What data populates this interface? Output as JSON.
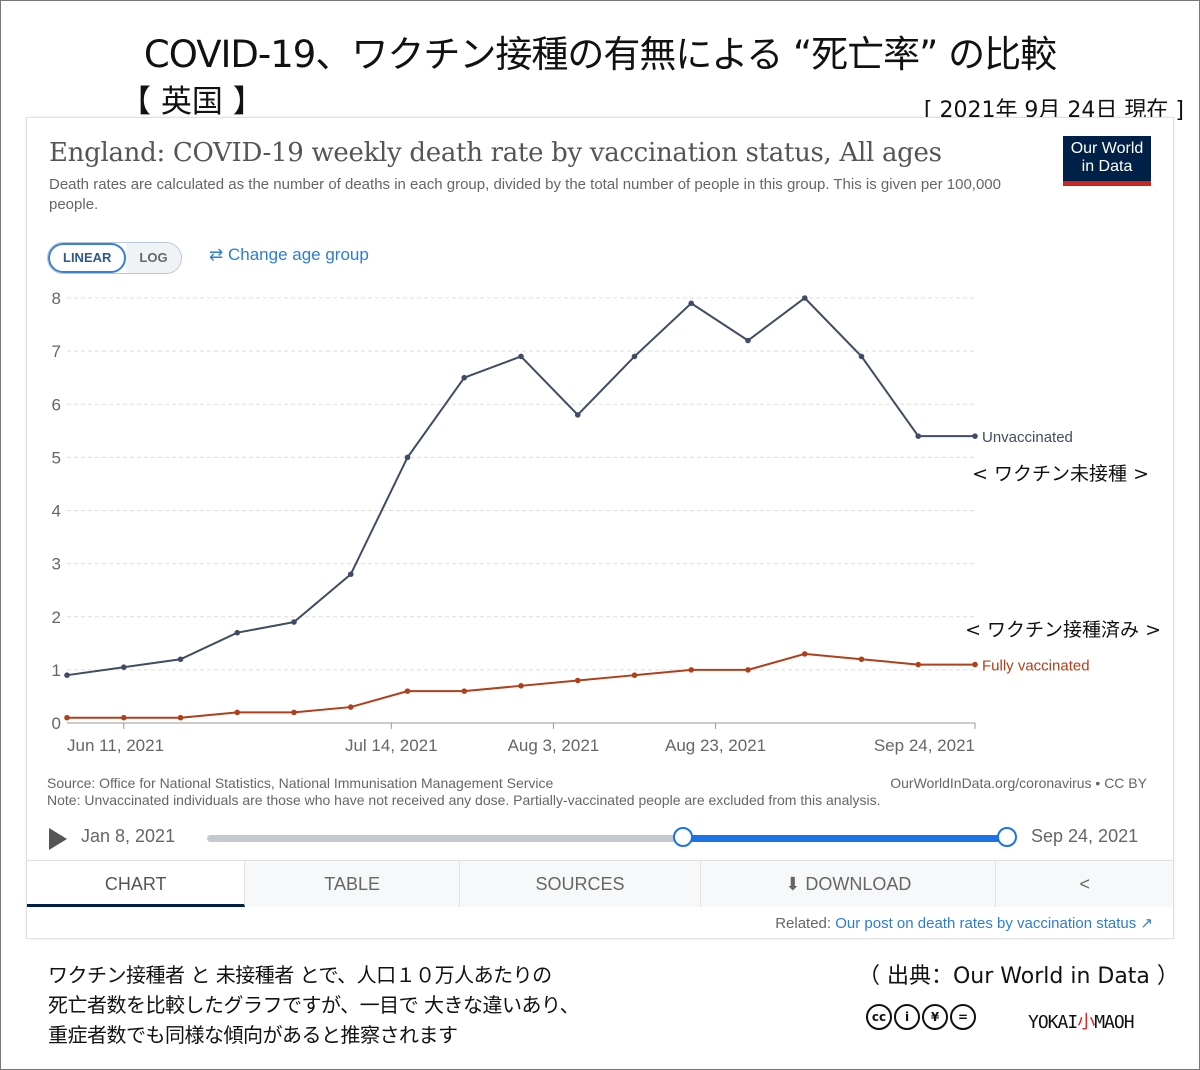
{
  "header": {
    "title_jp": "COVID-19、ワクチン接種の有無による “死亡率” の比較",
    "country_jp": "【 英国 】",
    "date_jp": "[ 2021年 9月 24日 現在 ]"
  },
  "card": {
    "title": "England: COVID-19 weekly death rate by vaccination status, All ages",
    "subtitle": "Death rates are calculated as the number of deaths in each group, divided by the total number of people in this group. This is given per 100,000 people.",
    "logo_line1": "Our World",
    "logo_line2": "in Data",
    "toggle_linear": "LINEAR",
    "toggle_log": "LOG",
    "change_age": "⇄ Change age group",
    "source_left": "Source: Office for National Statistics, National Immunisation Management Service",
    "source_right": "OurWorldInData.org/coronavirus • CC BY",
    "note": "Note: Unvaccinated individuals are those who have not received any dose. Partially-vaccinated people are excluded from this analysis.",
    "timeline_start": "Jan 8, 2021",
    "timeline_end": "Sep 24, 2021",
    "tabs": [
      "CHART",
      "TABLE",
      "SOURCES",
      "DOWNLOAD",
      ""
    ],
    "related_prefix": "Related:",
    "related_link": "Our post on death rates by vaccination status"
  },
  "annotations": {
    "unvaccinated_jp": "< ワクチン未接種 >",
    "vaccinated_jp": "< ワクチン接種済み >"
  },
  "footer": {
    "note_line1": "ワクチン接種者 と 未接種者 とで、人口１０万人あたりの",
    "note_line2": "死亡者数を比較したグラフですが、一目で 大きな違いあり、",
    "note_line3": "重症者数でも同様な傾向があると推察されます",
    "source_jp": "（ 出典：Our World in Data ）",
    "brand_a": "YOKAI",
    "brand_b": "小",
    "brand_c": "MAOH"
  },
  "colors": {
    "unvaccinated": "#3f4c63",
    "vaccinated": "#b13f1a",
    "accent": "#1a73e8",
    "owid_navy": "#002147"
  },
  "chart_data": {
    "type": "line",
    "title": "England: COVID-19 weekly death rate by vaccination status, All ages",
    "x_labels": [
      "Jun 11, 2021",
      "Jul 14, 2021",
      "Aug 3, 2021",
      "Aug 23, 2021",
      "Sep 24, 2021"
    ],
    "x": [
      "2021-06-04",
      "2021-06-11",
      "2021-06-18",
      "2021-06-25",
      "2021-07-02",
      "2021-07-09",
      "2021-07-16",
      "2021-07-23",
      "2021-07-30",
      "2021-08-06",
      "2021-08-13",
      "2021-08-20",
      "2021-08-27",
      "2021-09-03",
      "2021-09-10",
      "2021-09-17",
      "2021-09-24"
    ],
    "series": [
      {
        "name": "Unvaccinated",
        "values": [
          0.9,
          1.05,
          1.2,
          1.7,
          1.9,
          2.8,
          5.0,
          6.5,
          6.9,
          5.8,
          6.9,
          7.9,
          7.2,
          8.0,
          6.9,
          5.4,
          5.4
        ]
      },
      {
        "name": "Fully vaccinated",
        "values": [
          0.1,
          0.1,
          0.1,
          0.2,
          0.2,
          0.3,
          0.6,
          0.6,
          0.7,
          0.8,
          0.9,
          1.0,
          1.0,
          1.3,
          1.2,
          1.1,
          1.1
        ]
      }
    ],
    "y_ticks": [
      0,
      1,
      2,
      3,
      4,
      5,
      6,
      7,
      8
    ],
    "ylim": [
      0,
      8
    ],
    "grid": true,
    "scale": "linear"
  }
}
